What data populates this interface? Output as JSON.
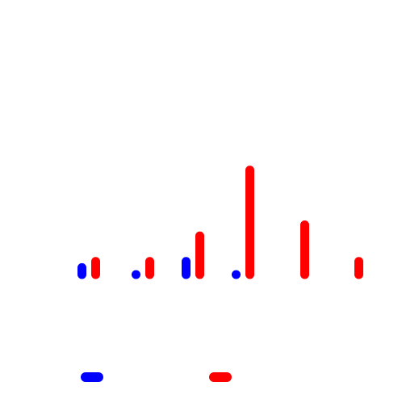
{
  "chart_data": {
    "type": "bar",
    "categories": [
      "",
      "",
      "",
      "",
      "",
      ""
    ],
    "ylim": [
      0,
      10
    ],
    "grid": false,
    "axes_visible": false,
    "legend_placement": "bottom",
    "bar_shape": "rounded",
    "series": [
      {
        "color": "#0000ff",
        "values": [
          1.3,
          0.3,
          1.8,
          0.3,
          null,
          null
        ]
      },
      {
        "color": "#ff0000",
        "values": [
          1.8,
          1.8,
          3.9,
          9.3,
          4.8,
          1.8
        ]
      }
    ]
  }
}
